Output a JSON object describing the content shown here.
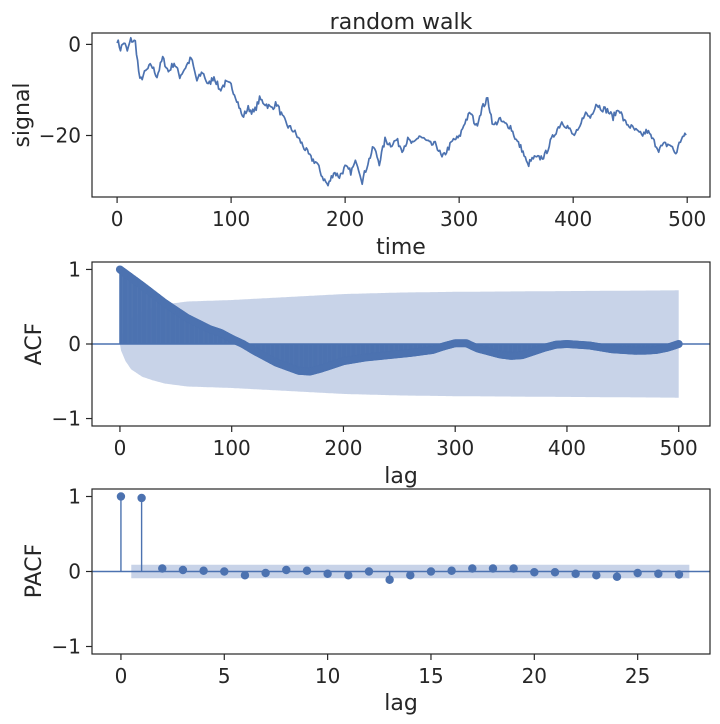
{
  "colors": {
    "line": "#4c72b0",
    "band": "#c8d3e8",
    "axis": "#262626"
  },
  "chart_data": [
    {
      "type": "line",
      "title": "random walk",
      "xlabel": "time",
      "ylabel": "signal",
      "xlim": [
        -22,
        520
      ],
      "ylim": [
        -33.5,
        2.5
      ],
      "xticks": [
        0,
        100,
        200,
        300,
        400,
        500
      ],
      "yticks": [
        0,
        -20
      ],
      "grid": false,
      "anchors": [
        [
          0,
          1
        ],
        [
          3,
          -1
        ],
        [
          6,
          0.5
        ],
        [
          9,
          -1.5
        ],
        [
          12,
          1
        ],
        [
          16,
          0.5
        ],
        [
          20,
          -8
        ],
        [
          25,
          -6
        ],
        [
          30,
          -4.5
        ],
        [
          35,
          -7
        ],
        [
          40,
          -3
        ],
        [
          45,
          -6
        ],
        [
          50,
          -4
        ],
        [
          55,
          -7
        ],
        [
          60,
          -5
        ],
        [
          65,
          -3
        ],
        [
          70,
          -8
        ],
        [
          75,
          -6
        ],
        [
          80,
          -9
        ],
        [
          85,
          -7
        ],
        [
          90,
          -10
        ],
        [
          95,
          -8.5
        ],
        [
          100,
          -9
        ],
        [
          105,
          -12
        ],
        [
          110,
          -16
        ],
        [
          115,
          -14
        ],
        [
          120,
          -15
        ],
        [
          125,
          -12
        ],
        [
          130,
          -13
        ],
        [
          135,
          -14
        ],
        [
          140,
          -13
        ],
        [
          145,
          -16
        ],
        [
          150,
          -18
        ],
        [
          155,
          -19
        ],
        [
          160,
          -21
        ],
        [
          165,
          -23
        ],
        [
          170,
          -25
        ],
        [
          175,
          -26
        ],
        [
          180,
          -29
        ],
        [
          185,
          -31
        ],
        [
          190,
          -28
        ],
        [
          195,
          -29
        ],
        [
          200,
          -27
        ],
        [
          205,
          -28
        ],
        [
          210,
          -25.5
        ],
        [
          215,
          -30
        ],
        [
          220,
          -26
        ],
        [
          225,
          -22.5
        ],
        [
          230,
          -26
        ],
        [
          235,
          -21
        ],
        [
          240,
          -22
        ],
        [
          245,
          -21
        ],
        [
          250,
          -23
        ],
        [
          255,
          -21
        ],
        [
          260,
          -22
        ],
        [
          265,
          -20
        ],
        [
          270,
          -21
        ],
        [
          275,
          -22
        ],
        [
          280,
          -22
        ],
        [
          285,
          -25
        ],
        [
          290,
          -23
        ],
        [
          295,
          -21
        ],
        [
          300,
          -20.5
        ],
        [
          305,
          -17
        ],
        [
          310,
          -15
        ],
        [
          315,
          -18
        ],
        [
          320,
          -14
        ],
        [
          325,
          -12
        ],
        [
          330,
          -18
        ],
        [
          335,
          -16.5
        ],
        [
          340,
          -17.5
        ],
        [
          345,
          -18
        ],
        [
          350,
          -21
        ],
        [
          355,
          -23
        ],
        [
          360,
          -26.5
        ],
        [
          365,
          -25
        ],
        [
          370,
          -25
        ],
        [
          375,
          -24.5
        ],
        [
          380,
          -21.5
        ],
        [
          385,
          -19
        ],
        [
          390,
          -17
        ],
        [
          395,
          -18
        ],
        [
          400,
          -20
        ],
        [
          405,
          -19
        ],
        [
          410,
          -15
        ],
        [
          415,
          -16
        ],
        [
          420,
          -13
        ],
        [
          425,
          -14
        ],
        [
          430,
          -14.5
        ],
        [
          435,
          -16
        ],
        [
          440,
          -14
        ],
        [
          445,
          -17
        ],
        [
          450,
          -18
        ],
        [
          455,
          -19
        ],
        [
          460,
          -20
        ],
        [
          465,
          -19
        ],
        [
          470,
          -21
        ],
        [
          475,
          -23
        ],
        [
          480,
          -22
        ],
        [
          485,
          -22
        ],
        [
          490,
          -24
        ],
        [
          495,
          -20.5
        ],
        [
          499,
          -20
        ]
      ]
    },
    {
      "type": "stem",
      "xlabel": "lag",
      "ylabel": "ACF",
      "xlim": [
        -25,
        528
      ],
      "ylim": [
        -1.1,
        1.1
      ],
      "xticks": [
        0,
        100,
        200,
        300,
        400,
        500
      ],
      "yticks": [
        1,
        0,
        -1
      ],
      "grid": false,
      "n_lags": 500,
      "acf_anchors": [
        [
          0,
          1
        ],
        [
          20,
          0.78
        ],
        [
          40,
          0.55
        ],
        [
          60,
          0.35
        ],
        [
          80,
          0.2
        ],
        [
          90,
          0.15
        ],
        [
          100,
          0.07
        ],
        [
          110,
          0
        ],
        [
          120,
          -0.09
        ],
        [
          140,
          -0.25
        ],
        [
          160,
          -0.36
        ],
        [
          170,
          -0.37
        ],
        [
          180,
          -0.33
        ],
        [
          200,
          -0.23
        ],
        [
          220,
          -0.18
        ],
        [
          240,
          -0.15
        ],
        [
          260,
          -0.12
        ],
        [
          280,
          -0.08
        ],
        [
          290,
          -0.03
        ],
        [
          300,
          0.01
        ],
        [
          310,
          0.01
        ],
        [
          320,
          -0.06
        ],
        [
          340,
          -0.14
        ],
        [
          350,
          -0.16
        ],
        [
          360,
          -0.15
        ],
        [
          370,
          -0.1
        ],
        [
          380,
          -0.05
        ],
        [
          390,
          -0.01
        ],
        [
          400,
          0
        ],
        [
          420,
          -0.02
        ],
        [
          440,
          -0.07
        ],
        [
          460,
          -0.09
        ],
        [
          470,
          -0.09
        ],
        [
          480,
          -0.08
        ],
        [
          490,
          -0.05
        ],
        [
          500,
          0
        ]
      ],
      "confint_anchors": [
        [
          0,
          0
        ],
        [
          1,
          0.09
        ],
        [
          5,
          0.23
        ],
        [
          10,
          0.34
        ],
        [
          20,
          0.44
        ],
        [
          30,
          0.49
        ],
        [
          40,
          0.53
        ],
        [
          60,
          0.57
        ],
        [
          100,
          0.59
        ],
        [
          150,
          0.63
        ],
        [
          200,
          0.67
        ],
        [
          250,
          0.69
        ],
        [
          300,
          0.7
        ],
        [
          400,
          0.71
        ],
        [
          500,
          0.72
        ]
      ]
    },
    {
      "type": "stem",
      "xlabel": "lag",
      "ylabel": "PACF",
      "xlim": [
        -1.4,
        28.5
      ],
      "ylim": [
        -1.1,
        1.1
      ],
      "xticks": [
        0,
        5,
        10,
        15,
        20,
        25
      ],
      "yticks": [
        1,
        0,
        -1
      ],
      "grid": false,
      "x": [
        0,
        1,
        2,
        3,
        4,
        5,
        6,
        7,
        8,
        9,
        10,
        11,
        12,
        13,
        14,
        15,
        16,
        17,
        18,
        19,
        20,
        21,
        22,
        23,
        24,
        25,
        26,
        27
      ],
      "values": [
        1,
        0.98,
        0.04,
        0.02,
        0.01,
        0,
        -0.05,
        -0.02,
        0.02,
        0.01,
        -0.03,
        -0.05,
        0,
        -0.11,
        -0.05,
        0,
        0.01,
        0.04,
        0.04,
        0.04,
        -0.01,
        -0.01,
        -0.03,
        -0.05,
        -0.07,
        -0.02,
        -0.03,
        -0.04
      ],
      "confint": 0.09,
      "confint_range": [
        0.5,
        27.5
      ]
    }
  ]
}
